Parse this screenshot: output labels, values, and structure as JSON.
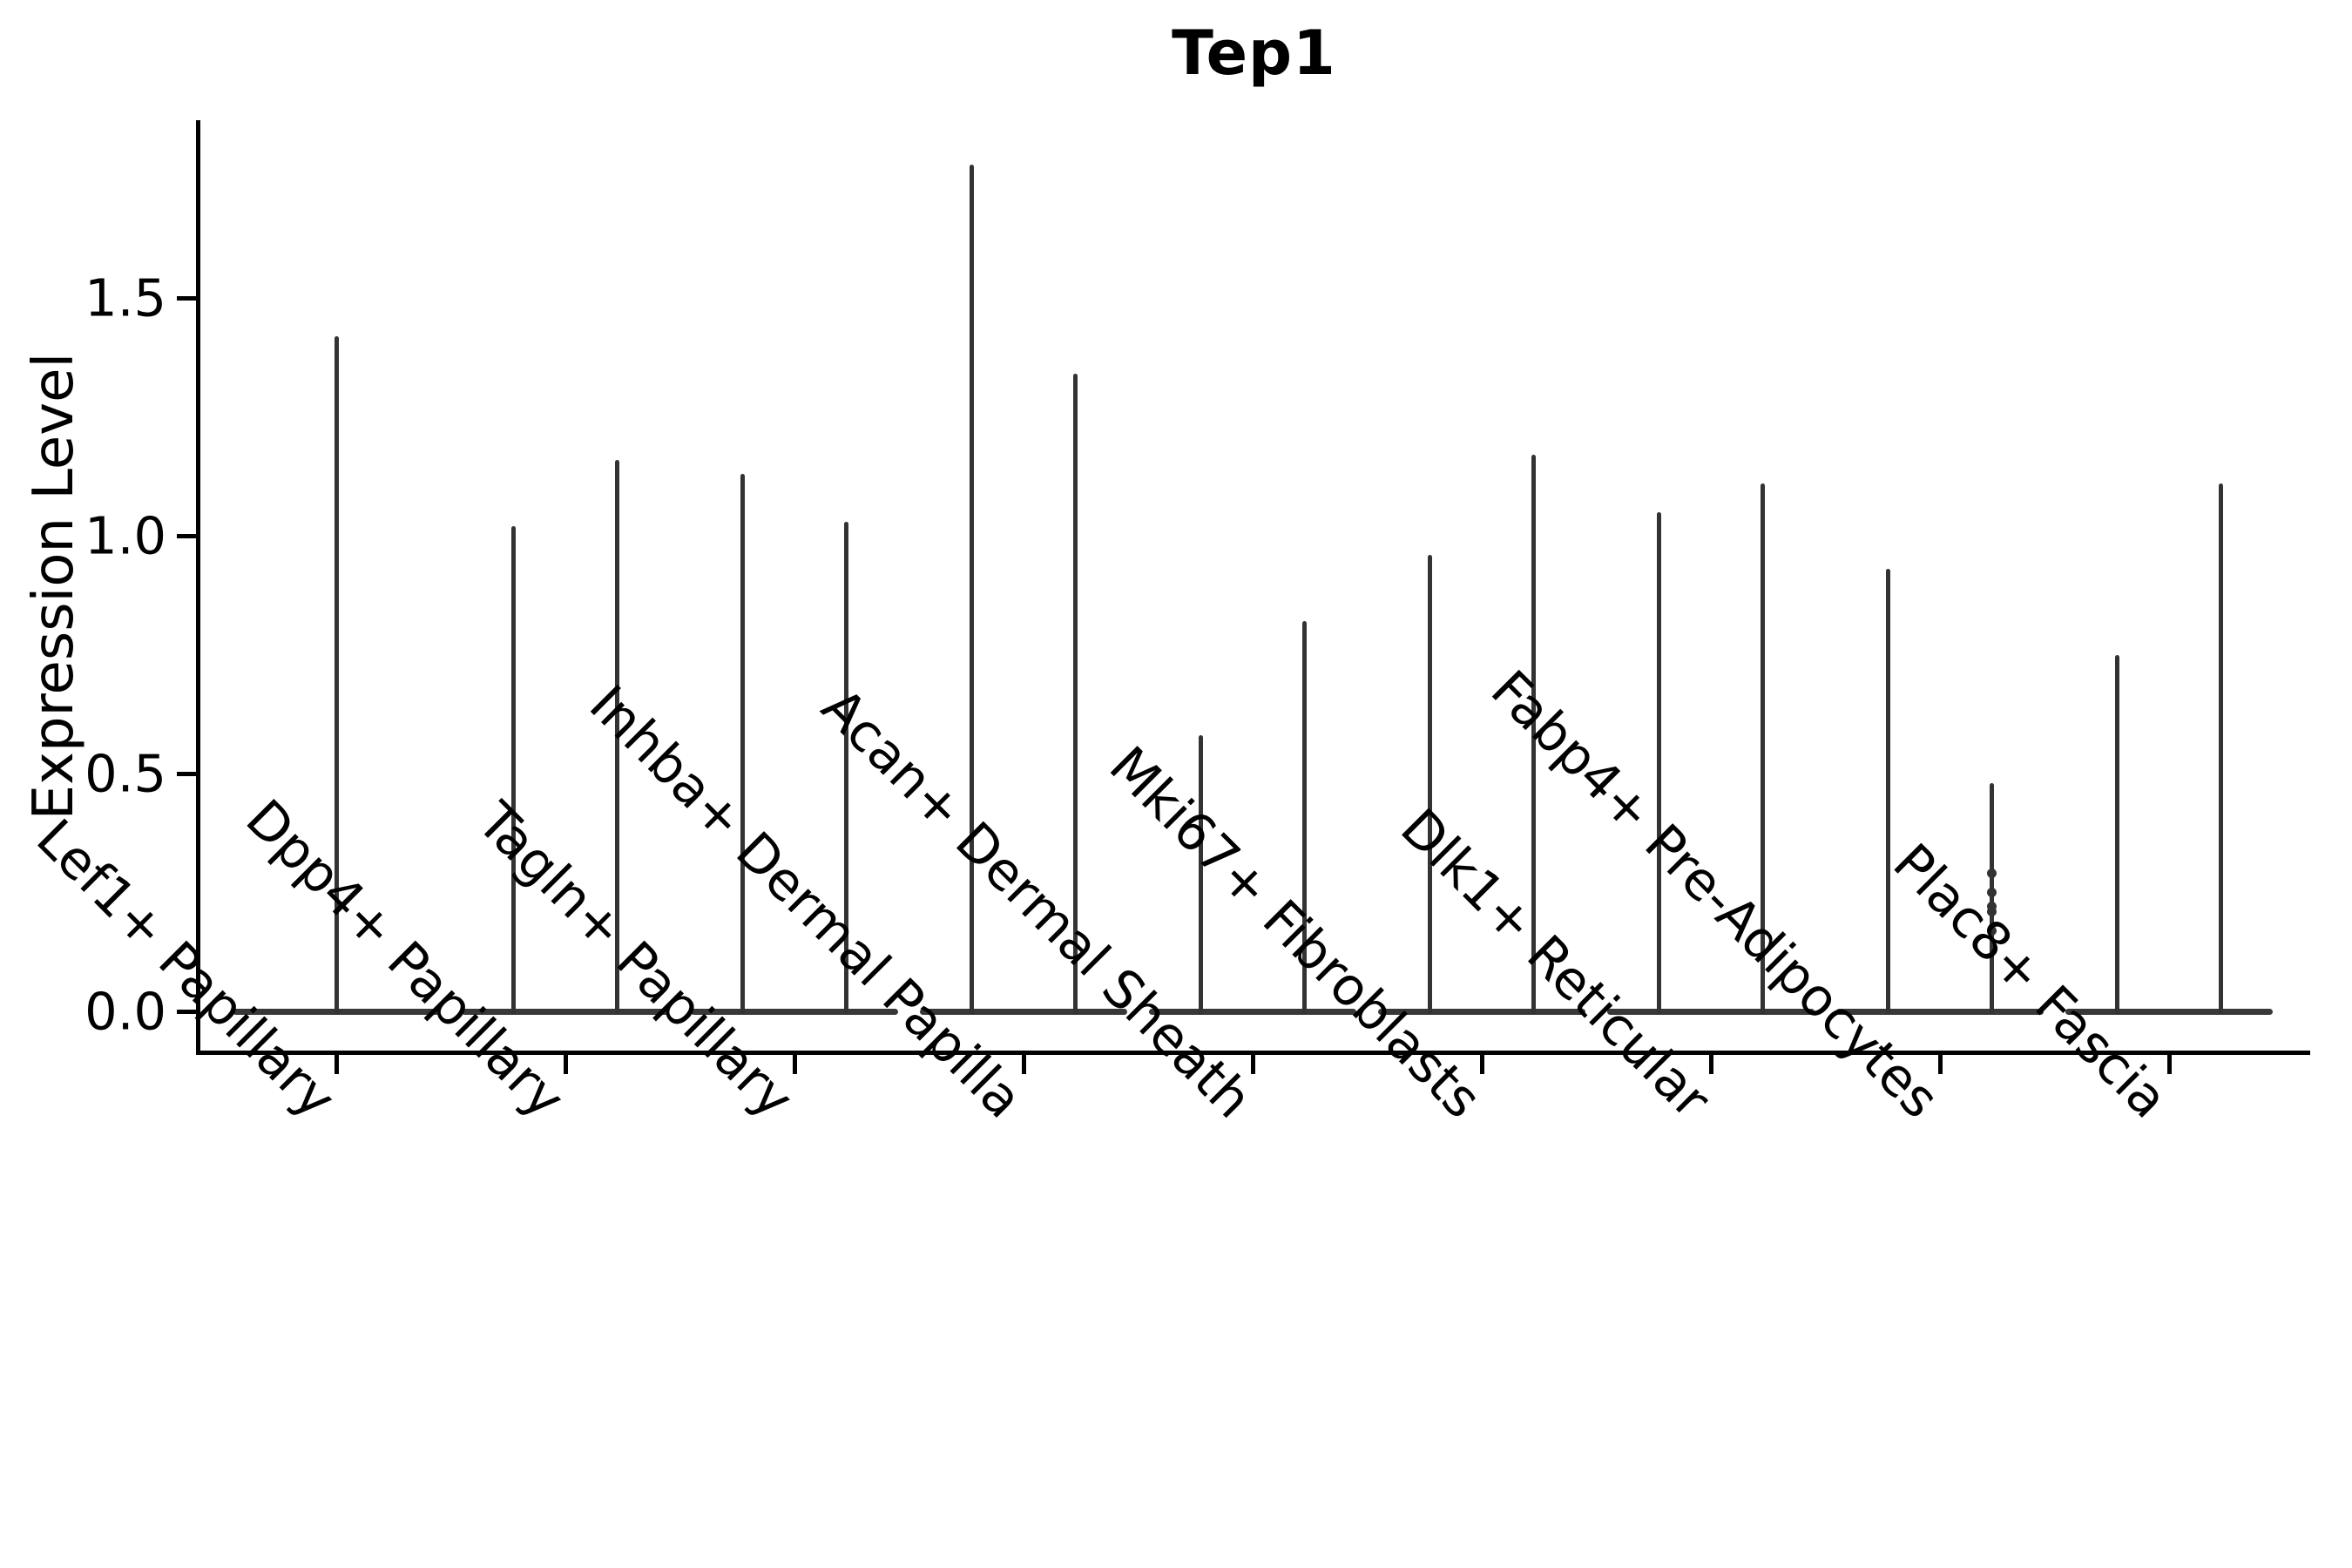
{
  "title": "Tep1",
  "ylabel": "Expression Level",
  "colors": {
    "violin": "#333333",
    "violin_base": "#383838",
    "axis": "#000000",
    "text": "#000000",
    "background": "#ffffff"
  },
  "chart_data": {
    "type": "violin",
    "title": "Tep1",
    "xlabel": "",
    "ylabel": "Expression Level",
    "ylim": [
      -0.09,
      1.87
    ],
    "yticks": [
      0.0,
      0.5,
      1.0,
      1.5
    ],
    "yticklabels": [
      "0.0",
      "0.5",
      "1.0",
      "1.5"
    ],
    "grid": false,
    "legend": "none",
    "x_tick_rotation": 45,
    "baseline_value": 0.0,
    "description": "Violin plot of Tep1 expression; each cluster shows a flat density mass at 0 with thin spikes up to the maximum expression value. Most clusters show a pair of thin spikes (left/right), Lef1+ Papillary shows a single centered spike.",
    "categories": [
      "Lef1+ Papillary",
      "Dpp4+ Papillary",
      "Tagln+ Papillary",
      "Inhba+ Dermal Papilla",
      "Acan+ Dermal Sheath",
      "Mki67+ Fibroblasts",
      "Dlk1+ Reticular",
      "Fabp4+ Pre-Adipocytes",
      "Plac8+ Fascia"
    ],
    "violins": [
      {
        "category": "Lef1+ Papillary",
        "spikes": [
          {
            "position": "center",
            "max": 1.42
          }
        ]
      },
      {
        "category": "Dpp4+ Papillary",
        "spikes": [
          {
            "position": "left",
            "max": 1.02
          },
          {
            "position": "right",
            "max": 1.16
          }
        ]
      },
      {
        "category": "Tagln+ Papillary",
        "spikes": [
          {
            "position": "left",
            "max": 1.13
          },
          {
            "position": "right",
            "max": 1.03
          }
        ]
      },
      {
        "category": "Inhba+ Dermal Papilla",
        "spikes": [
          {
            "position": "left",
            "max": 1.78
          },
          {
            "position": "right",
            "max": 1.34
          }
        ]
      },
      {
        "category": "Acan+ Dermal Sheath",
        "spikes": [
          {
            "position": "left",
            "max": 0.58
          },
          {
            "position": "right",
            "max": 0.82
          }
        ]
      },
      {
        "category": "Mki67+ Fibroblasts",
        "spikes": [
          {
            "position": "left",
            "max": 0.96
          },
          {
            "position": "right",
            "max": 1.17
          }
        ]
      },
      {
        "category": "Dlk1+ Reticular",
        "spikes": [
          {
            "position": "left",
            "max": 1.05
          },
          {
            "position": "right",
            "max": 1.11
          }
        ]
      },
      {
        "category": "Fabp4+ Pre-Adipocytes",
        "spikes": [
          {
            "position": "left",
            "max": 0.93
          },
          {
            "position": "right",
            "max": 0.48,
            "points": [
              0.17,
              0.21,
              0.22,
              0.25,
              0.29
            ]
          }
        ]
      },
      {
        "category": "Plac8+ Fascia",
        "spikes": [
          {
            "position": "left",
            "max": 0.75
          },
          {
            "position": "right",
            "max": 1.11
          }
        ]
      }
    ]
  }
}
